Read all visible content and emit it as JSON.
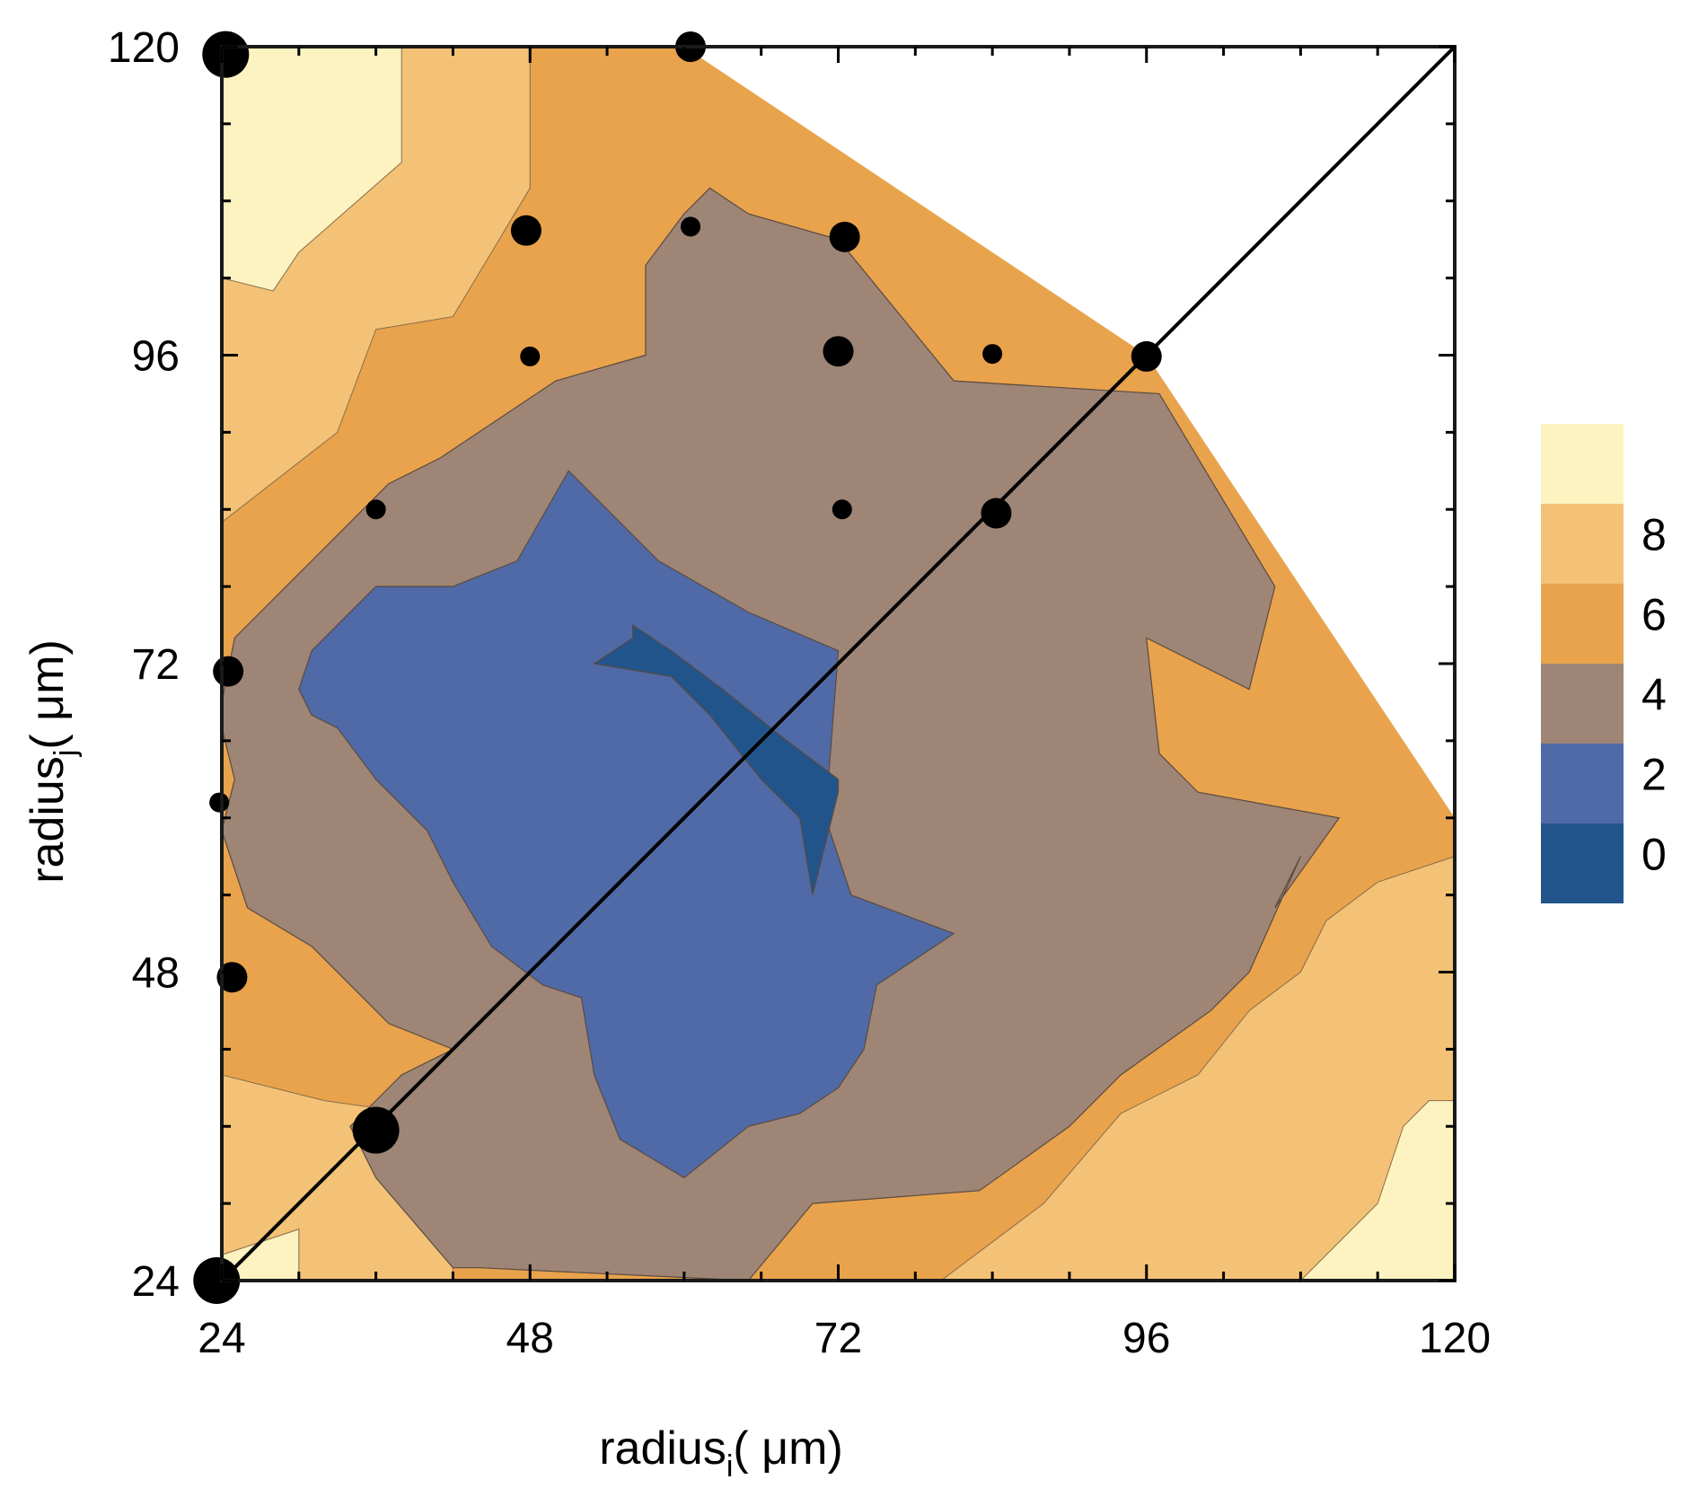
{
  "chart_data": {
    "type": "contour",
    "xlabel": {
      "main": "radius",
      "sub": "i",
      "unit": "( μm)"
    },
    "ylabel": {
      "main": "radius",
      "sub": "j",
      "unit": "( μm)"
    },
    "xlim": [
      24,
      120
    ],
    "ylim": [
      24,
      120
    ],
    "xticks": [
      "24",
      "48",
      "72",
      "96",
      "120"
    ],
    "yticks": [
      "24",
      "48",
      "72",
      "96",
      "120"
    ],
    "colorbar": {
      "levels": [
        0,
        2,
        4,
        6,
        8
      ],
      "tick_labels": [
        "0",
        "2",
        "4",
        "6",
        "8"
      ],
      "colors": [
        "#22548c",
        "#4f6aa6",
        "#9e8575",
        "#e8a34c",
        "#f3c276",
        "#fcf3c0"
      ]
    },
    "contour_levels": [
      {
        "name": "level-2-4",
        "color": "#9e8575",
        "points": [
          [
            24,
            59
          ],
          [
            25,
            63
          ],
          [
            24,
            67
          ],
          [
            24,
            69
          ],
          [
            25,
            74
          ],
          [
            31,
            80
          ],
          [
            37,
            86
          ],
          [
            41,
            88
          ],
          [
            50,
            94
          ],
          [
            57,
            96
          ],
          [
            57,
            103
          ],
          [
            60,
            107
          ],
          [
            62,
            109
          ],
          [
            65,
            107
          ],
          [
            72,
            105
          ],
          [
            81,
            94
          ],
          [
            97,
            93
          ],
          [
            106,
            78
          ],
          [
            104,
            70
          ],
          [
            96,
            74
          ],
          [
            97,
            65
          ],
          [
            100,
            62
          ],
          [
            111,
            60
          ],
          [
            106,
            53
          ],
          [
            108,
            57
          ],
          [
            104,
            48
          ],
          [
            101,
            45
          ],
          [
            94,
            40
          ],
          [
            90,
            36
          ],
          [
            83,
            31
          ],
          [
            70,
            30
          ],
          [
            65,
            24
          ],
          [
            44,
            25
          ],
          [
            42,
            25
          ],
          [
            36,
            32
          ],
          [
            34,
            36
          ],
          [
            38,
            40
          ],
          [
            42,
            42
          ],
          [
            37,
            44
          ],
          [
            31,
            50
          ],
          [
            26,
            53
          ]
        ]
      },
      {
        "name": "level-0-2",
        "color": "#4f6aa6",
        "points": [
          [
            30,
            70
          ],
          [
            31,
            73
          ],
          [
            36,
            78
          ],
          [
            42,
            78
          ],
          [
            47,
            80
          ],
          [
            51,
            87
          ],
          [
            58,
            80
          ],
          [
            65,
            76
          ],
          [
            72,
            73
          ],
          [
            71,
            60
          ],
          [
            73,
            54
          ],
          [
            81,
            51
          ],
          [
            75,
            47
          ],
          [
            74,
            42
          ],
          [
            72,
            39
          ],
          [
            69,
            37
          ],
          [
            65,
            36
          ],
          [
            60,
            32
          ],
          [
            55,
            35
          ],
          [
            53,
            40
          ],
          [
            52,
            46
          ],
          [
            49,
            47
          ],
          [
            45,
            50
          ],
          [
            42,
            55
          ],
          [
            40,
            59
          ],
          [
            36,
            63
          ],
          [
            33,
            67
          ],
          [
            31,
            68
          ]
        ]
      },
      {
        "name": "level-below-0",
        "color": "#22548c",
        "points": [
          [
            53,
            72
          ],
          [
            56,
            74
          ],
          [
            56,
            75
          ],
          [
            59,
            73
          ],
          [
            63,
            70
          ],
          [
            68,
            66
          ],
          [
            72,
            63
          ],
          [
            72,
            62
          ],
          [
            71,
            58
          ],
          [
            70,
            54
          ],
          [
            69,
            60
          ],
          [
            66,
            63
          ],
          [
            62,
            68
          ],
          [
            59,
            71
          ]
        ]
      }
    ],
    "diagonal": {
      "x": [
        24,
        120
      ],
      "y": [
        24,
        120
      ]
    },
    "points": [
      {
        "x": 24.3,
        "y": 119.4,
        "size": "large"
      },
      {
        "x": 60.5,
        "y": 120.0,
        "size": "medium"
      },
      {
        "x": 47.7,
        "y": 105.7,
        "size": "medium"
      },
      {
        "x": 60.5,
        "y": 106.0,
        "size": "small"
      },
      {
        "x": 72.5,
        "y": 105.2,
        "size": "medium"
      },
      {
        "x": 48.0,
        "y": 95.9,
        "size": "small"
      },
      {
        "x": 72.0,
        "y": 96.3,
        "size": "medium"
      },
      {
        "x": 84.0,
        "y": 96.1,
        "size": "small"
      },
      {
        "x": 96.0,
        "y": 95.9,
        "size": "medium"
      },
      {
        "x": 36.0,
        "y": 84.0,
        "size": "small"
      },
      {
        "x": 72.3,
        "y": 84.0,
        "size": "small"
      },
      {
        "x": 84.3,
        "y": 83.7,
        "size": "medium"
      },
      {
        "x": 24.5,
        "y": 71.4,
        "size": "medium"
      },
      {
        "x": 23.8,
        "y": 61.2,
        "size": "small"
      },
      {
        "x": 24.8,
        "y": 47.6,
        "size": "medium"
      },
      {
        "x": 36.0,
        "y": 35.7,
        "size": "large"
      },
      {
        "x": 23.6,
        "y": 24.0,
        "size": "large"
      }
    ]
  }
}
